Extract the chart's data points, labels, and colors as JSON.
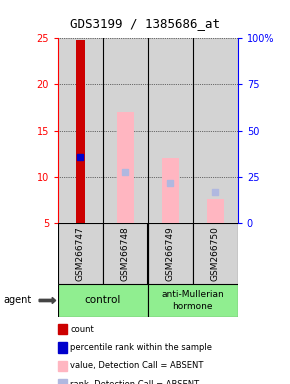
{
  "title": "GDS3199 / 1385686_at",
  "samples": [
    "GSM266747",
    "GSM266748",
    "GSM266749",
    "GSM266750"
  ],
  "control_color": "#90EE90",
  "amh_color": "#90EE90",
  "bar_bg_color": "#d3d3d3",
  "ylim_left": [
    5,
    25
  ],
  "ylim_right": [
    0,
    100
  ],
  "left_ticks": [
    5,
    10,
    15,
    20,
    25
  ],
  "right_ticks": [
    0,
    25,
    50,
    75,
    100
  ],
  "right_tick_labels": [
    "0",
    "25",
    "50",
    "75",
    "100%"
  ],
  "count_color": "#cc0000",
  "rank_color": "#0000cc",
  "absent_value_color": "#FFB6C1",
  "absent_rank_color": "#b0b8e0",
  "bars": [
    {
      "x": 0,
      "count": 24.8,
      "rank": 12.1,
      "absent_value": null,
      "absent_rank": null
    },
    {
      "x": 1,
      "count": null,
      "rank": null,
      "absent_value": 17.0,
      "absent_rank": 10.5
    },
    {
      "x": 2,
      "count": null,
      "rank": null,
      "absent_value": 12.0,
      "absent_rank": 9.3
    },
    {
      "x": 3,
      "count": null,
      "rank": null,
      "absent_value": 7.6,
      "absent_rank": 8.3
    }
  ],
  "base": 5,
  "legend_items": [
    {
      "color": "#cc0000",
      "label": "count"
    },
    {
      "color": "#0000cc",
      "label": "percentile rank within the sample"
    },
    {
      "color": "#FFB6C1",
      "label": "value, Detection Call = ABSENT"
    },
    {
      "color": "#b0b8e0",
      "label": "rank, Detection Call = ABSENT"
    }
  ]
}
